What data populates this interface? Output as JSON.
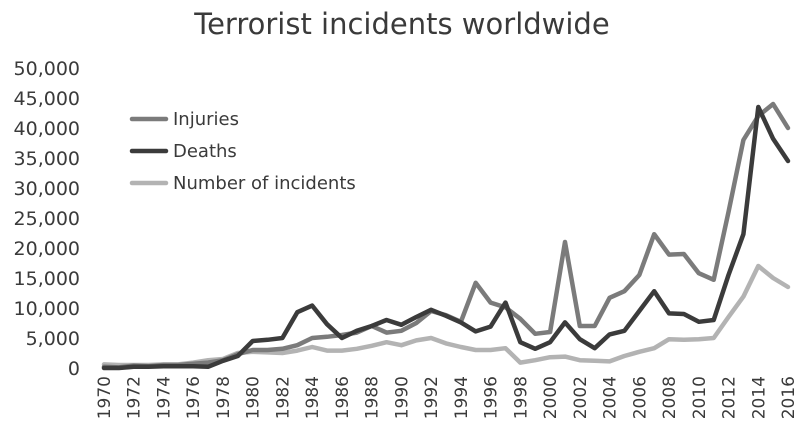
{
  "chart_data": {
    "type": "line",
    "title": "Terrorist incidents worldwide",
    "xlabel": "",
    "ylabel": "",
    "x": [
      1970,
      1971,
      1972,
      1973,
      1974,
      1975,
      1976,
      1977,
      1978,
      1979,
      1980,
      1981,
      1982,
      1983,
      1984,
      1985,
      1986,
      1987,
      1988,
      1989,
      1990,
      1991,
      1992,
      1993,
      1994,
      1995,
      1996,
      1997,
      1998,
      1999,
      2000,
      2001,
      2002,
      2003,
      2004,
      2005,
      2006,
      2007,
      2008,
      2009,
      2010,
      2011,
      2012,
      2013,
      2014,
      2015,
      2016
    ],
    "xticks": [
      "1970",
      "1972",
      "1974",
      "1976",
      "1978",
      "1980",
      "1982",
      "1984",
      "1986",
      "1988",
      "1990",
      "1992",
      "1994",
      "1996",
      "1998",
      "2000",
      "2002",
      "2004",
      "2006",
      "2008",
      "2010",
      "2012",
      "2014",
      "2016"
    ],
    "yticks": [
      "0",
      "5,000",
      "10,000",
      "15,000",
      "20,000",
      "25,000",
      "30,000",
      "35,000",
      "40,000",
      "45,000",
      "50,000"
    ],
    "ylim": [
      0,
      50000
    ],
    "grid": false,
    "legend_position": "top-left",
    "series": [
      {
        "name": "Injuries",
        "color": "#7b7b7b",
        "values": [
          200,
          100,
          400,
          300,
          500,
          500,
          700,
          900,
          1300,
          2300,
          3000,
          3000,
          3200,
          3800,
          5000,
          5200,
          5500,
          5900,
          7000,
          5900,
          6200,
          7500,
          9500,
          8800,
          7700,
          14200,
          10900,
          10100,
          8200,
          5700,
          6000,
          21000,
          7000,
          7000,
          11700,
          12800,
          15500,
          22300,
          18900,
          19000,
          15800,
          14700,
          26000,
          38000,
          42000,
          44000,
          40000
        ]
      },
      {
        "name": "Deaths",
        "color": "#3b3b3b",
        "values": [
          0,
          0,
          200,
          200,
          300,
          300,
          300,
          200,
          1200,
          2000,
          4500,
          4700,
          5000,
          9300,
          10400,
          7300,
          5000,
          6200,
          7000,
          8000,
          7200,
          8500,
          9700,
          8700,
          7600,
          6100,
          6900,
          10900,
          4300,
          3200,
          4300,
          7600,
          4800,
          3300,
          5600,
          6200,
          9500,
          12800,
          9100,
          9000,
          7700,
          8000,
          15500,
          22300,
          43500,
          38200,
          34500
        ]
      },
      {
        "name": "Number of incidents",
        "color": "#b3b3b3",
        "values": [
          600,
          500,
          500,
          500,
          600,
          600,
          900,
          1300,
          1500,
          2500,
          2700,
          2600,
          2500,
          2900,
          3500,
          2900,
          2900,
          3200,
          3700,
          4300,
          3800,
          4600,
          5000,
          4100,
          3500,
          3000,
          3000,
          3300,
          900,
          1300,
          1800,
          1900,
          1300,
          1200,
          1100,
          2000,
          2700,
          3300,
          4800,
          4700,
          4800,
          5000,
          8500,
          11900,
          17000,
          15000,
          13500
        ]
      }
    ]
  }
}
